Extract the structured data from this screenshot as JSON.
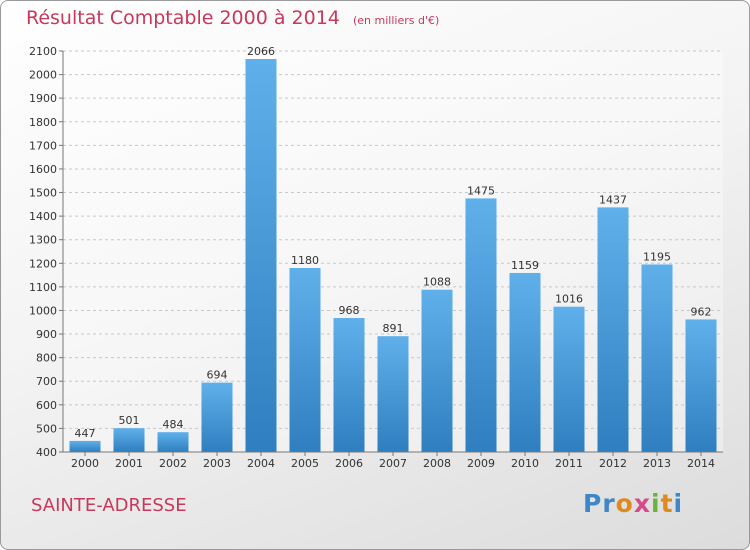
{
  "chart_data": {
    "type": "bar",
    "title": "Résultat Comptable 2000 à 2014",
    "subtitle": "(en milliers d'€)",
    "categories": [
      "2000",
      "2001",
      "2002",
      "2003",
      "2004",
      "2005",
      "2006",
      "2007",
      "2008",
      "2009",
      "2010",
      "2011",
      "2012",
      "2013",
      "2014"
    ],
    "values": [
      447,
      501,
      484,
      694,
      2066,
      1180,
      968,
      891,
      1088,
      1475,
      1159,
      1016,
      1437,
      1195,
      962
    ],
    "ylim": [
      400,
      2100
    ],
    "yticks": [
      400,
      500,
      600,
      700,
      800,
      900,
      1000,
      1100,
      1200,
      1300,
      1400,
      1500,
      1600,
      1700,
      1800,
      1900,
      2000,
      2100
    ],
    "xlabel": "",
    "ylabel": "",
    "grid": true,
    "bar_color": "#4aa0e0"
  },
  "location": "SAINTE-ADRESSE",
  "logo": "Proxiti"
}
